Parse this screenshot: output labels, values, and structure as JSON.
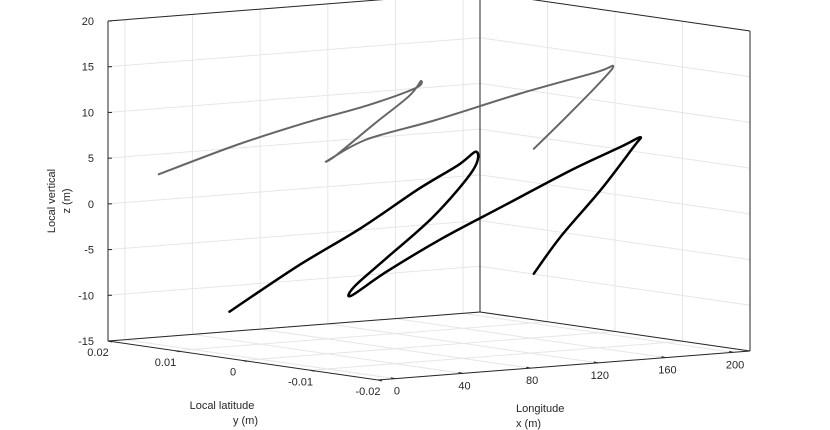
{
  "chart_data": {
    "type": "line",
    "view": "3d",
    "axes": {
      "x": {
        "label_lines": [
          "Longitude",
          "x (m)"
        ],
        "ticks": [
          0,
          40,
          80,
          120,
          160,
          200
        ],
        "range": [
          -10,
          210
        ]
      },
      "y": {
        "label_lines": [
          "Local latitude",
          "y (m)"
        ],
        "ticks": [
          0.02,
          0.01,
          0,
          -0.01,
          -0.02
        ],
        "tick_labels": [
          "0.02",
          "0.01",
          "0",
          "-0.01",
          "-0.02"
        ],
        "range": [
          -0.02,
          0.02
        ]
      },
      "z": {
        "label_lines": [
          "Local vertical",
          "z (m)"
        ],
        "ticks": [
          -15,
          -10,
          -5,
          0,
          5,
          10,
          15,
          20
        ],
        "range": [
          -15,
          20
        ]
      }
    },
    "grid": true,
    "series": [
      {
        "color": "#000000",
        "line_width": 2.5,
        "points": [
          [
            -2,
            0.004,
            -10.2
          ],
          [
            30,
            0.002,
            -5.5
          ],
          [
            60,
            0.0,
            -1.5
          ],
          [
            85,
            -0.002,
            2.5
          ],
          [
            105,
            -0.003,
            5.0
          ],
          [
            112,
            -0.004,
            6.5
          ],
          [
            110,
            -0.004,
            4.5
          ],
          [
            95,
            -0.002,
            -0.5
          ],
          [
            75,
            0.0,
            -5.0
          ],
          [
            60,
            0.001,
            -8.0
          ],
          [
            58,
            0.001,
            -9.0
          ],
          [
            75,
            0.0,
            -6.5
          ],
          [
            100,
            -0.002,
            -3.0
          ],
          [
            130,
            -0.004,
            0.5
          ],
          [
            160,
            -0.006,
            4.0
          ],
          [
            182,
            -0.008,
            6.5
          ],
          [
            189,
            -0.009,
            7.5
          ],
          [
            185,
            -0.009,
            6.5
          ],
          [
            170,
            -0.008,
            2.0
          ],
          [
            150,
            -0.007,
            -3.0
          ],
          [
            138,
            -0.006,
            -7.0
          ]
        ]
      },
      {
        "color": "#666666",
        "line_width": 2,
        "points": [
          [
            20,
            0.02,
            2.8
          ],
          [
            50,
            0.016,
            6.0
          ],
          [
            75,
            0.012,
            8.5
          ],
          [
            95,
            0.008,
            10.5
          ],
          [
            112,
            0.005,
            12.5
          ],
          [
            115,
            0.005,
            13.2
          ],
          [
            112,
            0.006,
            11.5
          ],
          [
            100,
            0.008,
            8.5
          ],
          [
            85,
            0.01,
            5.0
          ],
          [
            80,
            0.01,
            4.5
          ],
          [
            95,
            0.008,
            6.8
          ],
          [
            120,
            0.004,
            9.0
          ],
          [
            150,
            -0.001,
            12.0
          ],
          [
            175,
            -0.006,
            14.5
          ],
          [
            181,
            -0.007,
            15.2
          ],
          [
            178,
            -0.006,
            13.5
          ],
          [
            165,
            -0.004,
            9.5
          ],
          [
            154,
            -0.002,
            6.0
          ]
        ]
      }
    ]
  }
}
